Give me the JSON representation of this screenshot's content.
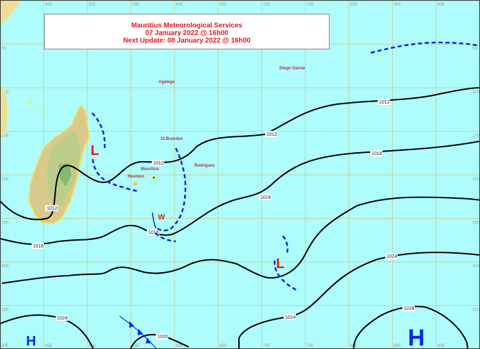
{
  "title": {
    "line1": "Mauritius Meteorological Services",
    "line2": "07 January 2022 @ 16h00",
    "line3": "Next Update: 08 January 2022 @ 16h00"
  },
  "longitudes": [
    "40E",
    "45E",
    "50E",
    "55E",
    "60E",
    "65E",
    "70E",
    "75E",
    "80E",
    "85E",
    "90E"
  ],
  "latitudes": [
    "5S",
    "10S",
    "15S",
    "20S",
    "25S",
    "30S",
    "35S"
  ],
  "stations": {
    "agalega": "Agalega",
    "diego_garcia": "Diego Garcia",
    "st_brandon": "St.Brandon",
    "mauritius": "Mauritius",
    "reunion": "Reunion",
    "rodrigues": "Rodrigues"
  },
  "isobars": {
    "l1012": "1012",
    "l1016": "1016",
    "l1020": "1020",
    "l1024": "1024",
    "l1028": "1028"
  },
  "pressure_centres": {
    "low": "L",
    "high": "H",
    "warning": "W"
  },
  "colors": {
    "sea": "#aefcfc",
    "grid": "#c8c880",
    "isobar": "#000000",
    "trough": "#0a28e6",
    "low": "#e8141c",
    "high": "#0a28e6",
    "land": "#e8d79a"
  }
}
